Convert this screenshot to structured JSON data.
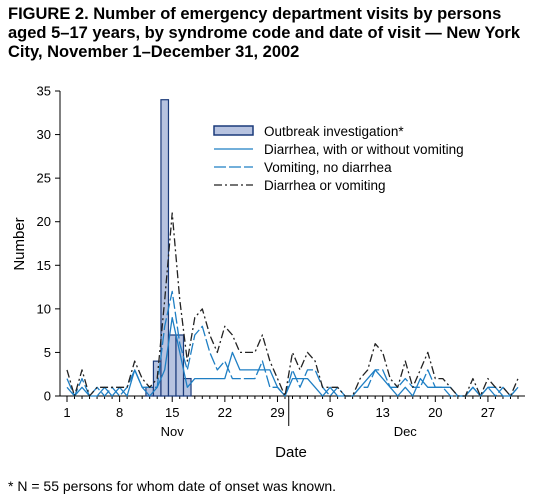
{
  "figure": {
    "title": "FIGURE 2. Number of emergency department visits by persons aged 5–17 years, by syndrome code and date of visit — New York City, November 1–December 31, 2002",
    "footnote": "* N = 55 persons for whom date of onset was known."
  },
  "chart_data": {
    "type": "bar",
    "xlabel": "Date",
    "ylabel": "Number",
    "xlim": [
      1,
      61
    ],
    "ylim": [
      0,
      35
    ],
    "y_ticks": [
      0,
      5,
      10,
      15,
      20,
      25,
      30,
      35
    ],
    "x_ticks": [
      {
        "day": 1,
        "label": "1"
      },
      {
        "day": 8,
        "label": "8"
      },
      {
        "day": 15,
        "label": "15"
      },
      {
        "day": 22,
        "label": "22"
      },
      {
        "day": 29,
        "label": "29"
      },
      {
        "day": 36,
        "label": "6"
      },
      {
        "day": 43,
        "label": "13"
      },
      {
        "day": 50,
        "label": "20"
      },
      {
        "day": 57,
        "label": "27"
      }
    ],
    "month_labels": [
      {
        "day": 15,
        "label": "Nov"
      },
      {
        "day": 46,
        "label": "Dec"
      }
    ],
    "month_divider_day": 30.5,
    "legend_position": "top-right",
    "grid": false,
    "series": [
      {
        "name": "Outbreak investigation*",
        "kind": "bar",
        "color": "#b7c3e0",
        "stroke": "#1a3a7a",
        "x": [
          12,
          13,
          14,
          15,
          16,
          17
        ],
        "values": [
          1,
          4,
          34,
          7,
          7,
          2
        ]
      },
      {
        "name": "Diarrhea, with or without vomiting",
        "kind": "line",
        "color": "#1f7fc4",
        "dash": "",
        "x": [
          1,
          2,
          3,
          4,
          5,
          6,
          7,
          8,
          9,
          10,
          11,
          12,
          13,
          14,
          15,
          16,
          17,
          18,
          19,
          20,
          21,
          22,
          23,
          24,
          25,
          26,
          27,
          28,
          29,
          30,
          31,
          32,
          33,
          34,
          35,
          36,
          37,
          38,
          39,
          40,
          41,
          42,
          43,
          44,
          45,
          46,
          47,
          48,
          49,
          50,
          51,
          52,
          53,
          54,
          55,
          56,
          57,
          58,
          59,
          60,
          61
        ],
        "values": [
          1,
          0,
          1,
          0,
          0,
          1,
          0,
          1,
          0,
          3,
          1,
          0,
          1,
          3,
          9,
          5,
          1,
          2,
          2,
          2,
          2,
          2,
          5,
          3,
          3,
          3,
          3,
          3,
          1,
          0,
          2,
          2,
          2,
          1,
          0,
          1,
          0,
          0,
          0,
          1,
          2,
          3,
          2,
          1,
          0,
          1,
          0,
          2,
          1,
          1,
          1,
          1,
          0,
          0,
          1,
          0,
          1,
          1,
          0,
          0,
          1
        ]
      },
      {
        "name": "Vomiting, no diarrhea",
        "kind": "line",
        "color": "#1f7fc4",
        "dash": "12,3",
        "x": [
          1,
          2,
          3,
          4,
          5,
          6,
          7,
          8,
          9,
          10,
          11,
          12,
          13,
          14,
          15,
          16,
          17,
          18,
          19,
          20,
          21,
          22,
          23,
          24,
          25,
          26,
          27,
          28,
          29,
          30,
          31,
          32,
          33,
          34,
          35,
          36,
          37,
          38,
          39,
          40,
          41,
          42,
          43,
          44,
          45,
          46,
          47,
          48,
          49,
          50,
          51,
          52,
          53,
          54,
          55,
          56,
          57,
          58,
          59,
          60,
          61
        ],
        "values": [
          2,
          0,
          2,
          0,
          1,
          0,
          1,
          0,
          1,
          3,
          1,
          1,
          1,
          8,
          12,
          6,
          3,
          7,
          8,
          5,
          3,
          4,
          2,
          2,
          2,
          2,
          4,
          1,
          1,
          0,
          3,
          1,
          3,
          3,
          1,
          0,
          1,
          0,
          0,
          1,
          1,
          3,
          3,
          1,
          1,
          2,
          1,
          1,
          3,
          1,
          1,
          0,
          0,
          0,
          1,
          0,
          1,
          0,
          1,
          0,
          1
        ]
      },
      {
        "name": "Diarrhea or vomiting",
        "kind": "line",
        "color": "#222222",
        "dash": "8,3,2,3",
        "x": [
          1,
          2,
          3,
          4,
          5,
          6,
          7,
          8,
          9,
          10,
          11,
          12,
          13,
          14,
          15,
          16,
          17,
          18,
          19,
          20,
          21,
          22,
          23,
          24,
          25,
          26,
          27,
          28,
          29,
          30,
          31,
          32,
          33,
          34,
          35,
          36,
          37,
          38,
          39,
          40,
          41,
          42,
          43,
          44,
          45,
          46,
          47,
          48,
          49,
          50,
          51,
          52,
          53,
          54,
          55,
          56,
          57,
          58,
          59,
          60,
          61
        ],
        "values": [
          3,
          0,
          3,
          0,
          1,
          1,
          1,
          1,
          1,
          4,
          2,
          1,
          2,
          11,
          21,
          11,
          4,
          9,
          10,
          7,
          5,
          8,
          7,
          5,
          5,
          5,
          7,
          4,
          2,
          0,
          5,
          3,
          5,
          4,
          1,
          1,
          1,
          0,
          0,
          2,
          3,
          6,
          5,
          2,
          1,
          4,
          1,
          3,
          5,
          2,
          2,
          1,
          0,
          0,
          2,
          0,
          2,
          1,
          1,
          0,
          2
        ]
      }
    ]
  }
}
